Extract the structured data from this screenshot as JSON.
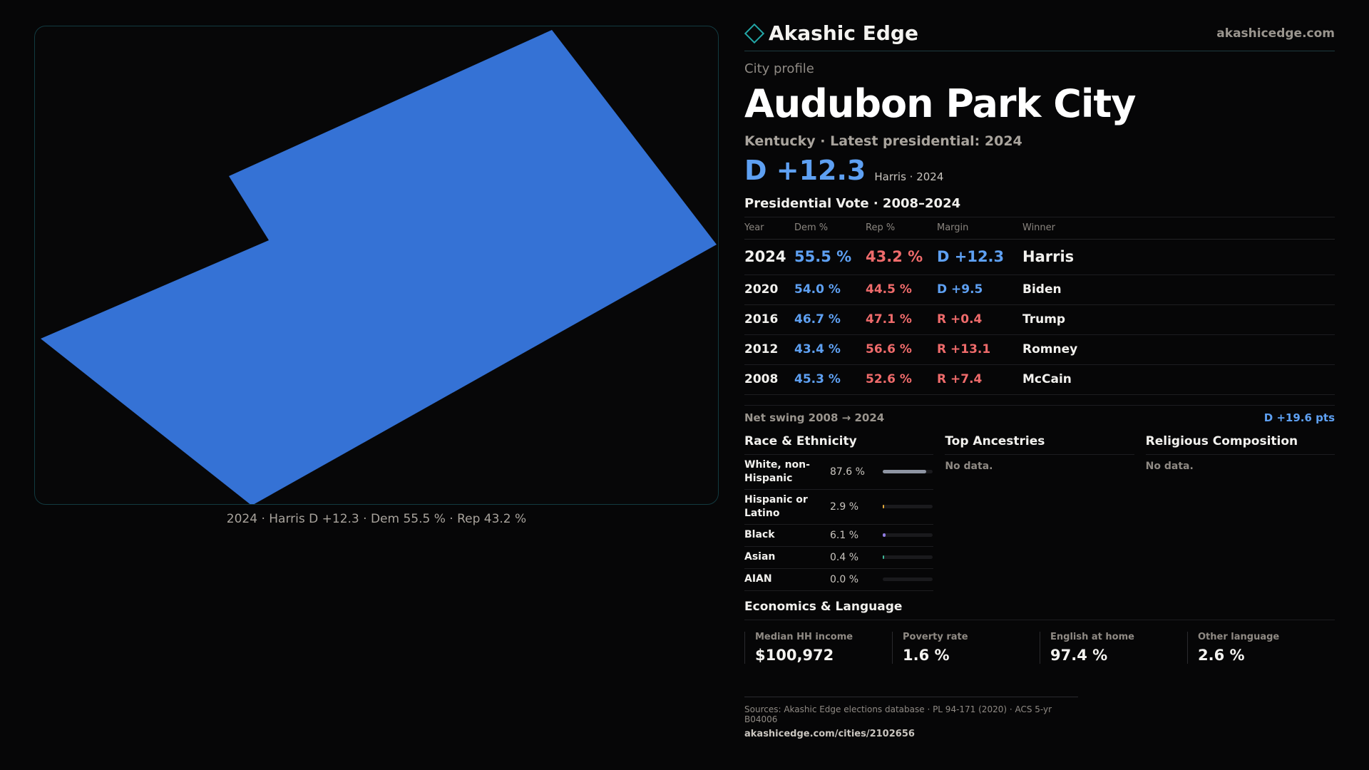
{
  "brand": {
    "name": "Akashic Edge",
    "url": "akashicedge.com"
  },
  "profile": {
    "label": "City profile",
    "city": "Audubon Park City",
    "subtitle": "Kentucky · Latest presidential: 2024",
    "headline_margin": "D +12.3",
    "headline_sub": "Harris · 2024"
  },
  "map": {
    "caption": "2024 · Harris D +12.3 · Dem 55.5 % · Rep 43.2 %",
    "fill_color": "#3572d5"
  },
  "votes": {
    "title": "Presidential Vote · 2008–2024",
    "headers": {
      "year": "Year",
      "dem": "Dem %",
      "rep": "Rep %",
      "margin": "Margin",
      "winner": "Winner"
    },
    "rows": [
      {
        "year": "2024",
        "dem": "55.5 %",
        "rep": "43.2 %",
        "margin": "D +12.3",
        "party": "D",
        "winner": "Harris"
      },
      {
        "year": "2020",
        "dem": "54.0 %",
        "rep": "44.5 %",
        "margin": "D +9.5",
        "party": "D",
        "winner": "Biden"
      },
      {
        "year": "2016",
        "dem": "46.7 %",
        "rep": "47.1 %",
        "margin": "R +0.4",
        "party": "R",
        "winner": "Trump"
      },
      {
        "year": "2012",
        "dem": "43.4 %",
        "rep": "56.6 %",
        "margin": "R +13.1",
        "party": "R",
        "winner": "Romney"
      },
      {
        "year": "2008",
        "dem": "45.3 %",
        "rep": "52.6 %",
        "margin": "R +7.4",
        "party": "R",
        "winner": "McCain"
      }
    ],
    "swing_label": "Net swing 2008 → 2024",
    "swing_value": "D +19.6 pts"
  },
  "race": {
    "title": "Race & Ethnicity",
    "rows": [
      {
        "label": "White, non-Hispanic",
        "value": "87.6 %",
        "share": 0.876,
        "color": "#8e95a3"
      },
      {
        "label": "Hispanic or Latino",
        "value": "2.9 %",
        "share": 0.029,
        "color": "#e2a93b"
      },
      {
        "label": "Black",
        "value": "6.1 %",
        "share": 0.061,
        "color": "#8f7be0"
      },
      {
        "label": "Asian",
        "value": "0.4 %",
        "share": 0.004,
        "color": "#3fb99a"
      },
      {
        "label": "AIAN",
        "value": "0.0 %",
        "share": 0.0,
        "color": "#c07a4a"
      }
    ]
  },
  "ancestries": {
    "title": "Top Ancestries",
    "empty": "No data."
  },
  "religion": {
    "title": "Religious Composition",
    "empty": "No data."
  },
  "economics": {
    "title": "Economics & Language",
    "cards": [
      {
        "label": "Median HH income",
        "value": "$100,972"
      },
      {
        "label": "Poverty rate",
        "value": "1.6 %"
      },
      {
        "label": "English at home",
        "value": "97.4 %"
      },
      {
        "label": "Other language",
        "value": "2.6 %"
      }
    ]
  },
  "footer": {
    "sources": "Sources: Akashic Edge elections database · PL 94-171 (2020) · ACS 5-yr B04006",
    "url": "akashicedge.com/cities/2102656"
  }
}
